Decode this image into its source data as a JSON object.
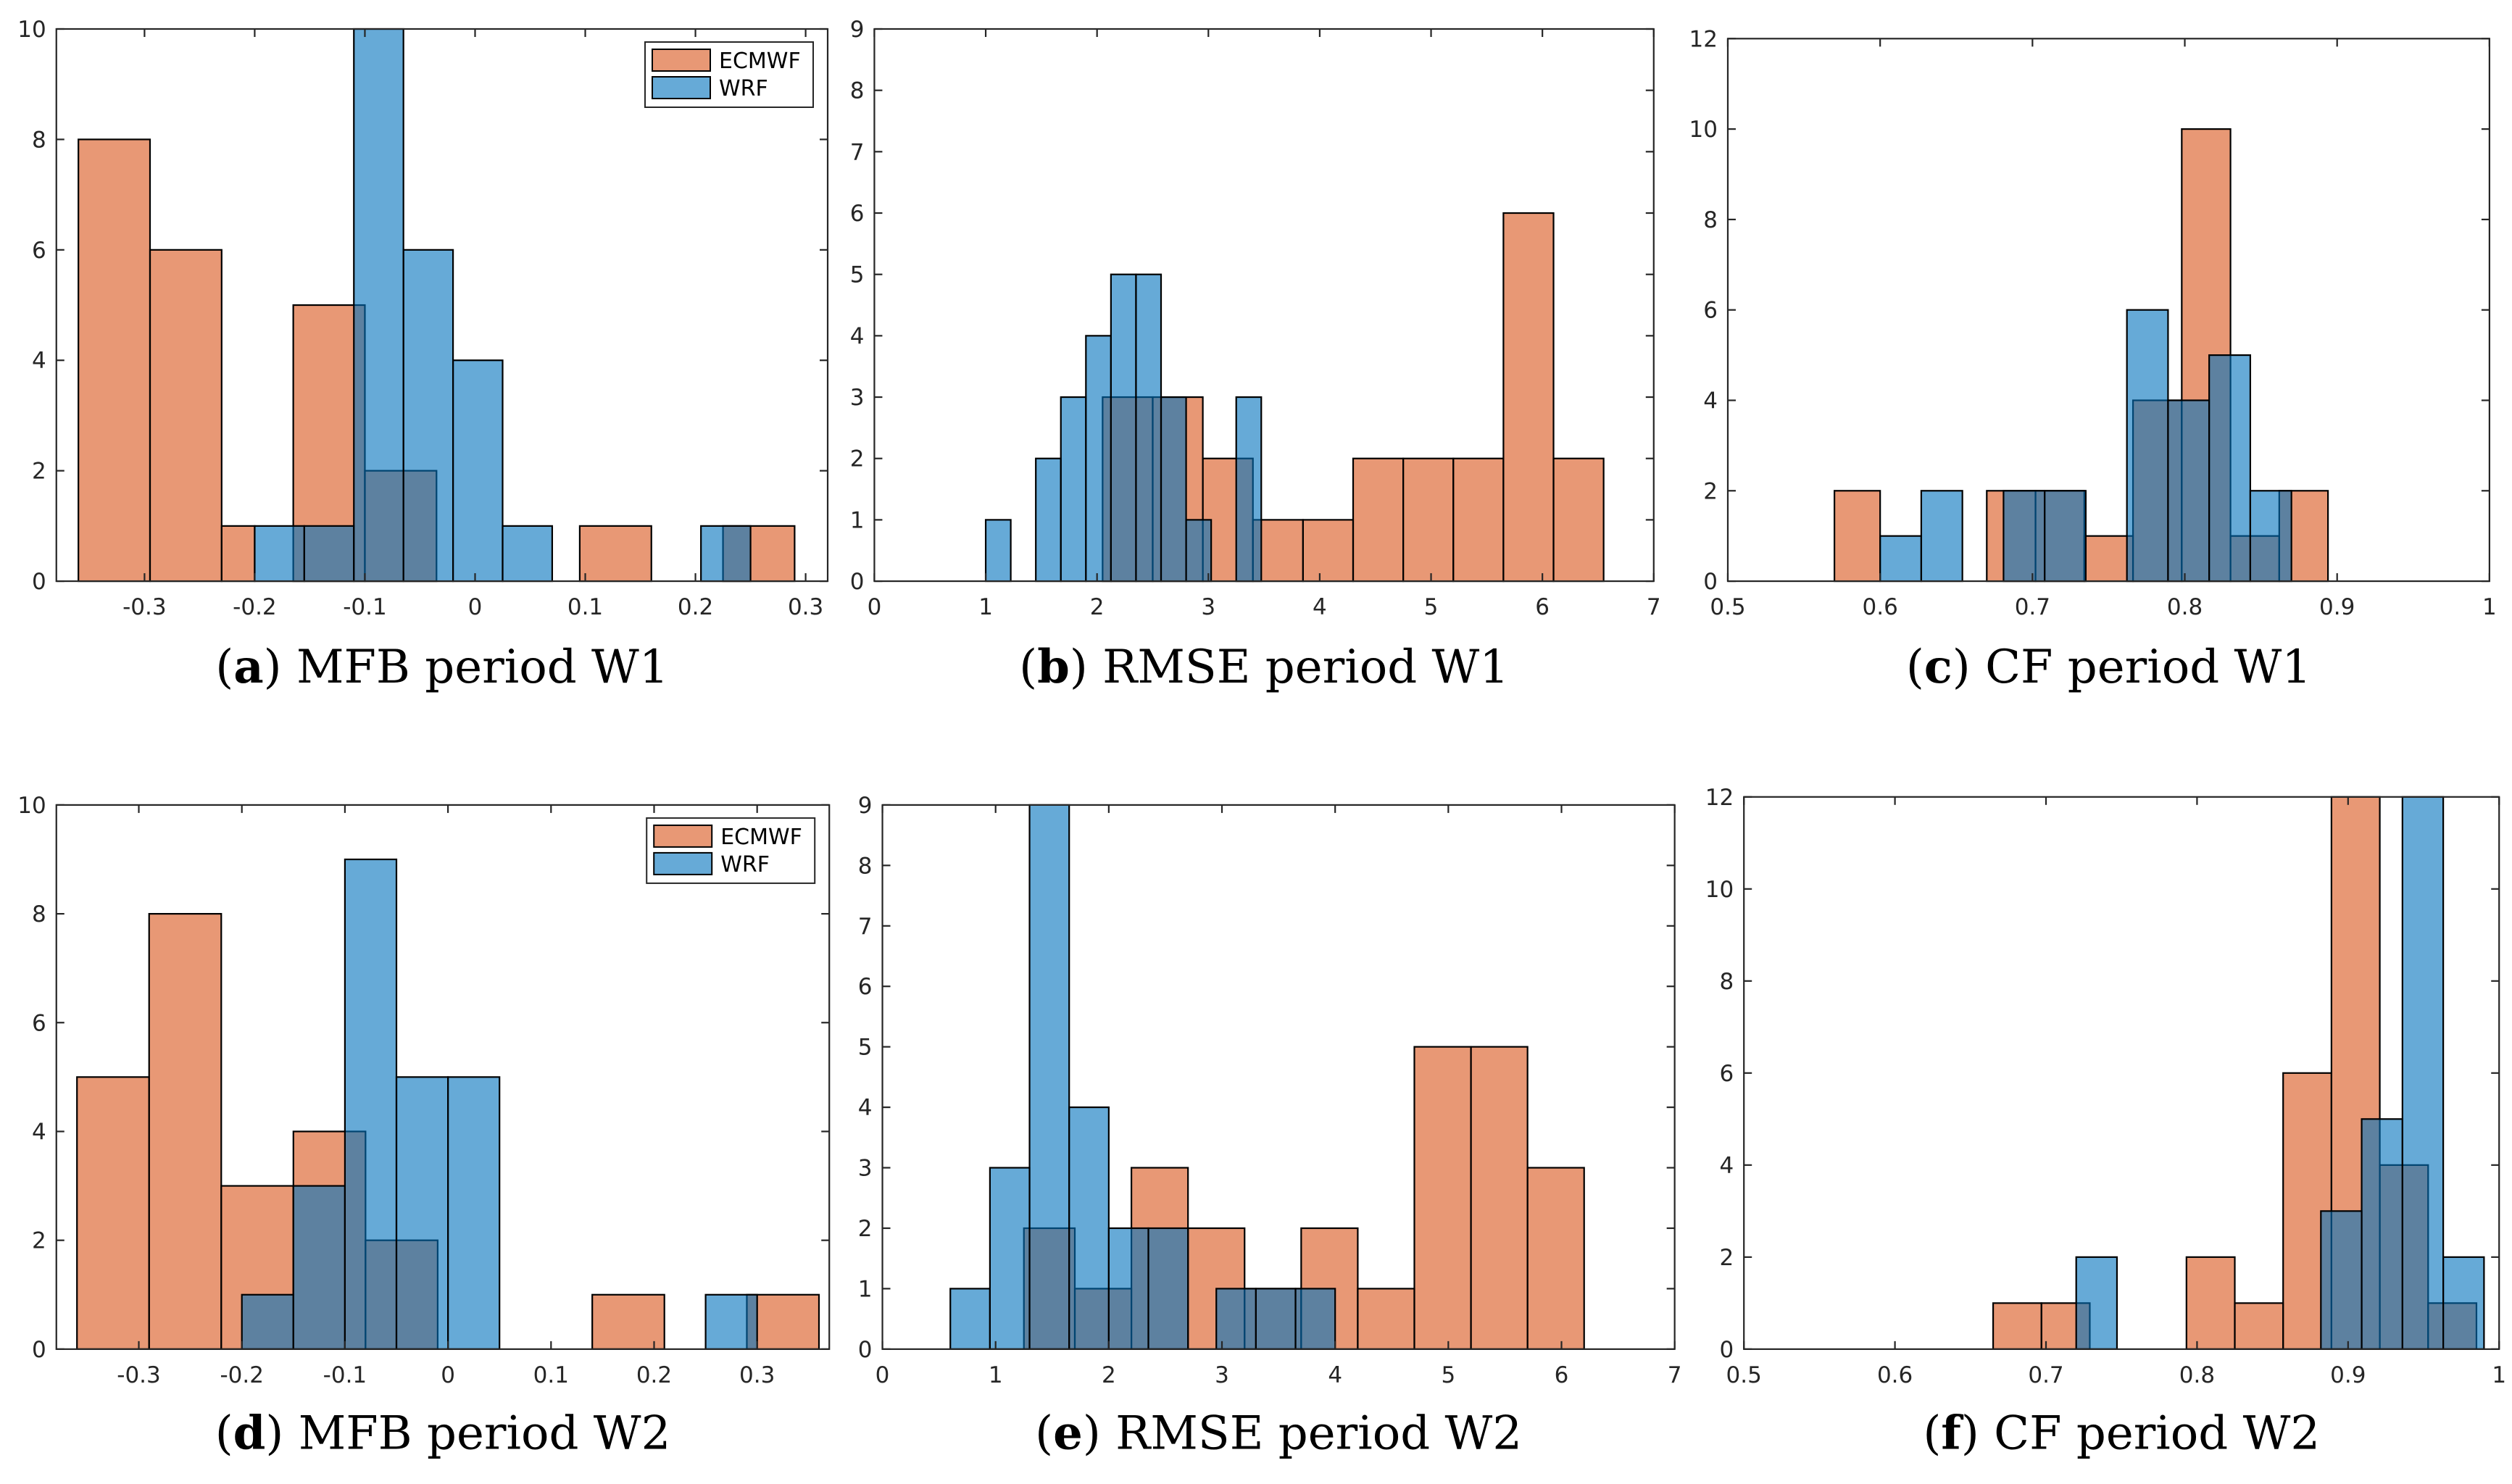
{
  "colors": {
    "ecmwf": "#D95319",
    "wrf": "#0072BD",
    "edge": "#000000"
  },
  "legend_labels": [
    "ECMWF",
    "WRF"
  ],
  "chart_data": [
    {
      "type": "bar",
      "id": "a",
      "title": "",
      "caption": {
        "letter": "a",
        "text": "MFB period W1"
      },
      "xlim": [
        -0.38,
        0.32
      ],
      "ylim": [
        0,
        10
      ],
      "xticks": [
        -0.3,
        -0.2,
        -0.1,
        0,
        0.1,
        0.2,
        0.3
      ],
      "xticklabels": [
        "-0.3",
        "-0.2",
        "-0.1",
        "0",
        "0.1",
        "0.2",
        "0.3"
      ],
      "yticks": [
        0,
        2,
        4,
        6,
        8,
        10
      ],
      "legend": "top-right",
      "series": [
        {
          "name": "ECMWF",
          "bins": [
            [
              -0.36,
              -0.295,
              8
            ],
            [
              -0.295,
              -0.23,
              6
            ],
            [
              -0.23,
              -0.2,
              1
            ],
            [
              -0.165,
              -0.1,
              5
            ],
            [
              -0.1,
              -0.035,
              2
            ],
            [
              0.095,
              0.16,
              1
            ],
            [
              0.225,
              0.29,
              1
            ]
          ]
        },
        {
          "name": "WRF",
          "bins": [
            [
              -0.2,
              -0.155,
              1
            ],
            [
              -0.155,
              -0.11,
              1
            ],
            [
              -0.11,
              -0.065,
              10
            ],
            [
              -0.065,
              -0.02,
              6
            ],
            [
              -0.02,
              0.025,
              4
            ],
            [
              0.025,
              0.07,
              1
            ],
            [
              0.205,
              0.25,
              1
            ]
          ]
        }
      ]
    },
    {
      "type": "bar",
      "id": "b",
      "title": "",
      "caption": {
        "letter": "b",
        "text": "RMSE period W1"
      },
      "xlim": [
        0,
        7
      ],
      "ylim": [
        0,
        9
      ],
      "xticks": [
        0,
        1,
        2,
        3,
        4,
        5,
        6,
        7
      ],
      "xticklabels": [
        "0",
        "1",
        "2",
        "3",
        "4",
        "5",
        "6",
        "7"
      ],
      "yticks": [
        0,
        1,
        2,
        3,
        4,
        5,
        6,
        7,
        8,
        9
      ],
      "legend": "none",
      "series": [
        {
          "name": "ECMWF",
          "bins": [
            [
              2.05,
              2.5,
              3
            ],
            [
              2.5,
              2.95,
              3
            ],
            [
              2.95,
              3.4,
              2
            ],
            [
              3.4,
              3.85,
              1
            ],
            [
              3.85,
              4.3,
              1
            ],
            [
              4.3,
              4.75,
              2
            ],
            [
              4.75,
              5.2,
              2
            ],
            [
              5.2,
              5.65,
              2
            ],
            [
              5.65,
              6.1,
              6
            ],
            [
              6.1,
              6.55,
              2
            ]
          ]
        },
        {
          "name": "WRF",
          "bins": [
            [
              1.0,
              1.225,
              1
            ],
            [
              1.45,
              1.675,
              2
            ],
            [
              1.675,
              1.9,
              3
            ],
            [
              1.9,
              2.125,
              4
            ],
            [
              2.125,
              2.35,
              5
            ],
            [
              2.35,
              2.575,
              5
            ],
            [
              2.575,
              2.8,
              3
            ],
            [
              2.8,
              3.025,
              1
            ],
            [
              3.25,
              3.475,
              3
            ]
          ]
        }
      ]
    },
    {
      "type": "bar",
      "id": "c",
      "title": "",
      "caption": {
        "letter": "c",
        "text": "CF period W1"
      },
      "xlim": [
        0.5,
        1.0
      ],
      "ylim": [
        0,
        12
      ],
      "xticks": [
        0.5,
        0.6,
        0.7,
        0.8,
        0.9,
        1.0
      ],
      "xticklabels": [
        "0.5",
        "0.6",
        "0.7",
        "0.8",
        "0.9",
        "1"
      ],
      "yticks": [
        0,
        2,
        4,
        6,
        8,
        10,
        12
      ],
      "legend": "none",
      "series": [
        {
          "name": "ECMWF",
          "bins": [
            [
              0.57,
              0.6,
              2
            ],
            [
              0.67,
              0.702,
              2
            ],
            [
              0.702,
              0.734,
              2
            ],
            [
              0.734,
              0.766,
              1
            ],
            [
              0.766,
              0.798,
              4
            ],
            [
              0.798,
              0.83,
              10
            ],
            [
              0.83,
              0.862,
              1
            ],
            [
              0.862,
              0.894,
              2
            ]
          ]
        },
        {
          "name": "WRF",
          "bins": [
            [
              0.6,
              0.627,
              1
            ],
            [
              0.627,
              0.654,
              2
            ],
            [
              0.681,
              0.708,
              2
            ],
            [
              0.708,
              0.735,
              2
            ],
            [
              0.762,
              0.789,
              6
            ],
            [
              0.789,
              0.816,
              4
            ],
            [
              0.816,
              0.843,
              5
            ],
            [
              0.843,
              0.87,
              2
            ]
          ]
        }
      ]
    },
    {
      "type": "bar",
      "id": "d",
      "title": "",
      "caption": {
        "letter": "d",
        "text": "MFB period W2"
      },
      "xlim": [
        -0.38,
        0.37
      ],
      "ylim": [
        0,
        10
      ],
      "xticks": [
        -0.3,
        -0.2,
        -0.1,
        0,
        0.1,
        0.2,
        0.3
      ],
      "xticklabels": [
        "-0.3",
        "-0.2",
        "-0.1",
        "0",
        "0.1",
        "0.2",
        "0.3"
      ],
      "yticks": [
        0,
        2,
        4,
        6,
        8,
        10
      ],
      "legend": "top-right",
      "series": [
        {
          "name": "ECMWF",
          "bins": [
            [
              -0.36,
              -0.29,
              5
            ],
            [
              -0.29,
              -0.22,
              8
            ],
            [
              -0.22,
              -0.15,
              3
            ],
            [
              -0.15,
              -0.08,
              4
            ],
            [
              -0.08,
              -0.01,
              2
            ],
            [
              0.14,
              0.21,
              1
            ],
            [
              0.29,
              0.36,
              1
            ]
          ]
        },
        {
          "name": "WRF",
          "bins": [
            [
              -0.2,
              -0.15,
              1
            ],
            [
              -0.15,
              -0.1,
              3
            ],
            [
              -0.1,
              -0.05,
              9
            ],
            [
              -0.05,
              0.0,
              5
            ],
            [
              0.0,
              0.05,
              5
            ],
            [
              0.25,
              0.3,
              1
            ]
          ]
        }
      ]
    },
    {
      "type": "bar",
      "id": "e",
      "title": "",
      "caption": {
        "letter": "e",
        "text": "RMSE period W2"
      },
      "xlim": [
        0,
        7
      ],
      "ylim": [
        0,
        9
      ],
      "xticks": [
        0,
        1,
        2,
        3,
        4,
        5,
        6,
        7
      ],
      "xticklabels": [
        "0",
        "1",
        "2",
        "3",
        "4",
        "5",
        "6",
        "7"
      ],
      "yticks": [
        0,
        1,
        2,
        3,
        4,
        5,
        6,
        7,
        8,
        9
      ],
      "legend": "none",
      "series": [
        {
          "name": "ECMWF",
          "bins": [
            [
              1.25,
              1.7,
              2
            ],
            [
              1.7,
              2.2,
              1
            ],
            [
              2.2,
              2.7,
              3
            ],
            [
              2.7,
              3.2,
              2
            ],
            [
              3.2,
              3.7,
              1
            ],
            [
              3.7,
              4.2,
              2
            ],
            [
              4.2,
              4.7,
              1
            ],
            [
              4.7,
              5.2,
              5
            ],
            [
              5.2,
              5.7,
              5
            ],
            [
              5.7,
              6.2,
              3
            ]
          ]
        },
        {
          "name": "WRF",
          "bins": [
            [
              0.6,
              0.95,
              1
            ],
            [
              0.95,
              1.3,
              3
            ],
            [
              1.3,
              1.65,
              9
            ],
            [
              1.65,
              2.0,
              4
            ],
            [
              2.0,
              2.35,
              2
            ],
            [
              2.35,
              2.7,
              2
            ],
            [
              2.95,
              3.3,
              1
            ],
            [
              3.3,
              3.65,
              1
            ],
            [
              3.65,
              4.0,
              1
            ]
          ]
        }
      ]
    },
    {
      "type": "bar",
      "id": "f",
      "title": "",
      "caption": {
        "letter": "f",
        "text": "CF period W2"
      },
      "xlim": [
        0.5,
        1.0
      ],
      "ylim": [
        0,
        12
      ],
      "xticks": [
        0.5,
        0.6,
        0.7,
        0.8,
        0.9,
        1.0
      ],
      "xticklabels": [
        "0.5",
        "0.6",
        "0.7",
        "0.8",
        "0.9",
        "1"
      ],
      "yticks": [
        0,
        2,
        4,
        6,
        8,
        10,
        12
      ],
      "legend": "none",
      "series": [
        {
          "name": "ECMWF",
          "bins": [
            [
              0.665,
              0.697,
              1
            ],
            [
              0.697,
              0.729,
              1
            ],
            [
              0.793,
              0.825,
              2
            ],
            [
              0.825,
              0.857,
              1
            ],
            [
              0.857,
              0.889,
              6
            ],
            [
              0.889,
              0.921,
              12
            ],
            [
              0.921,
              0.953,
              4
            ],
            [
              0.953,
              0.985,
              1
            ]
          ]
        },
        {
          "name": "WRF",
          "bins": [
            [
              0.72,
              0.747,
              2
            ],
            [
              0.882,
              0.909,
              3
            ],
            [
              0.909,
              0.936,
              5
            ],
            [
              0.936,
              0.963,
              12
            ],
            [
              0.963,
              0.99,
              2
            ]
          ]
        }
      ]
    }
  ]
}
